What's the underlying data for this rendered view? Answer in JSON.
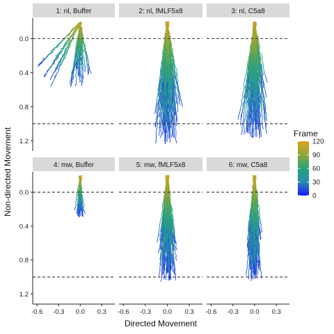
{
  "chart_data": {
    "type": "line",
    "title": "",
    "xlabel": "Directed Movement",
    "ylabel": "Non-directed Movement",
    "xlim": [
      -0.66,
      0.48
    ],
    "ylim": [
      -0.24,
      1.32
    ],
    "y_reversed": true,
    "x_ticks": [
      -0.6,
      -0.3,
      0.0,
      0.3
    ],
    "x_tick_labels": [
      "-0.6",
      "-0.3",
      "0.0",
      "0.3"
    ],
    "y_ticks": [
      0.0,
      0.4,
      0.8,
      1.2
    ],
    "y_tick_labels": [
      "0.0",
      "0.4",
      "0.8",
      "1.2"
    ],
    "reference_lines_y": [
      0.0,
      1.0
    ],
    "grid": false,
    "legend": {
      "title": "Frame",
      "placement": "right",
      "breaks": [
        120,
        90,
        60,
        30,
        0
      ],
      "colors": [
        "#e0a21c",
        "#8ea63a",
        "#26a47a",
        "#2b8ab0",
        "#1a1aff"
      ]
    },
    "panels": [
      {
        "label": "1: nl, Buffer",
        "tracks": 40,
        "spread_x": 0.12,
        "end_y": 0.55
      },
      {
        "label": "2: nl, fMLF5x8",
        "tracks": 110,
        "spread_x": 0.14,
        "end_y": 1.18
      },
      {
        "label": "3: nl, C5a8",
        "tracks": 100,
        "spread_x": 0.13,
        "end_y": 1.12
      },
      {
        "label": "4: mw, Buffer",
        "tracks": 30,
        "spread_x": 0.05,
        "end_y": 0.28
      },
      {
        "label": "5: mw, fMLF5x8",
        "tracks": 110,
        "spread_x": 0.1,
        "end_y": 1.0
      },
      {
        "label": "6: mw, C5a8",
        "tracks": 100,
        "spread_x": 0.08,
        "end_y": 1.0
      }
    ]
  }
}
